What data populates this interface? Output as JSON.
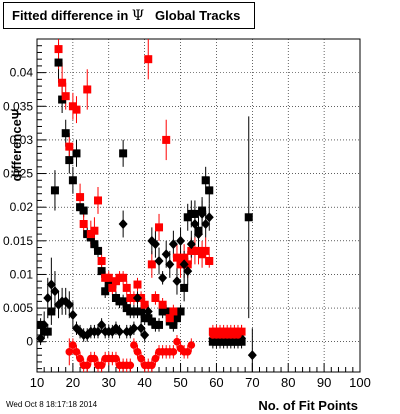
{
  "title": {
    "prefix": "Fitted difference in",
    "symbol": "Ψ",
    "suffix": "Global Tracks"
  },
  "timestamp": "Wed Oct  8 18:17:18 2014",
  "colors": {
    "black_series": "#000000",
    "red_series": "#ff0000",
    "axis": "#000000",
    "grid": "#000000"
  },
  "chart_data": {
    "type": "scatter",
    "xlabel": "No. of Fit Points",
    "ylabel": "differenceΨ",
    "xlim": [
      10,
      100
    ],
    "ylim": [
      -0.0045,
      0.045
    ],
    "x_ticks": [
      10,
      20,
      30,
      40,
      50,
      60,
      70,
      80,
      90,
      100
    ],
    "x_tick_labels": [
      "10",
      "20",
      "30",
      "40",
      "50",
      "60",
      "70",
      "80",
      "90",
      "100"
    ],
    "y_ticks": [
      0,
      0.005,
      0.01,
      0.015,
      0.02,
      0.025,
      0.03,
      0.035,
      0.04
    ],
    "y_tick_labels": [
      "0",
      "0.005",
      "0.01",
      "0.015",
      "0.02",
      "0.025",
      "0.03",
      "0.035",
      "0.04"
    ],
    "grid": true,
    "series": [
      {
        "marker": "square",
        "color": "#000000",
        "points": [
          [
            11,
            0.0025,
            0.001
          ],
          [
            12,
            0.0015,
            0.001
          ],
          [
            13,
            0.0015,
            0.001
          ],
          [
            14,
            0.0045,
            0.002
          ],
          [
            15,
            0.0225,
            0.003
          ],
          [
            16,
            0.0415,
            0.003
          ],
          [
            17,
            0.036,
            0.002
          ],
          [
            18,
            0.031,
            0.002
          ],
          [
            19,
            0.027,
            0.002
          ],
          [
            20,
            0.024,
            0.002
          ],
          [
            21,
            0.028,
            0.002
          ],
          [
            22,
            0.02,
            0.001
          ],
          [
            23,
            0.0195,
            0.001
          ],
          [
            24,
            0.016,
            0.001
          ],
          [
            25,
            0.0155,
            0.001
          ],
          [
            26,
            0.0145,
            0.001
          ],
          [
            27,
            0.0135,
            0.001
          ],
          [
            28,
            0.0105,
            0.001
          ],
          [
            29,
            0.0075,
            0.001
          ],
          [
            30,
            0.0085,
            0.001
          ],
          [
            31,
            0.0085,
            0.001
          ],
          [
            32,
            0.0065,
            0.001
          ],
          [
            33,
            0.006,
            0.001
          ],
          [
            34,
            0.006,
            0.001
          ],
          [
            35,
            0.005,
            0.001
          ],
          [
            36,
            0.0045,
            0.001
          ],
          [
            37,
            0.0045,
            0.001
          ],
          [
            38,
            0.0045,
            0.001
          ],
          [
            39,
            0.0045,
            0.001
          ],
          [
            40,
            0.0035,
            0.001
          ],
          [
            41,
            0.0035,
            0.001
          ],
          [
            42,
            0.003,
            0.001
          ],
          [
            43,
            0.0025,
            0.001
          ],
          [
            44,
            0.0025,
            0.001
          ],
          [
            45,
            0.0045,
            0.001
          ],
          [
            46,
            0.0045,
            0.001
          ],
          [
            47,
            0.003,
            0.001
          ],
          [
            48,
            0.0025,
            0.001
          ],
          [
            49,
            0.0035,
            0.001
          ],
          [
            50,
            0.0045,
            0.001
          ],
          [
            51,
            0.008,
            0.002
          ],
          [
            52,
            0.0185,
            0.002
          ],
          [
            53,
            0.019,
            0.002
          ],
          [
            54,
            0.019,
            0.002
          ],
          [
            55,
            0.0165,
            0.002
          ],
          [
            56,
            0.0195,
            0.002
          ],
          [
            57,
            0.024,
            0.002
          ],
          [
            58,
            0.0225,
            0.002
          ],
          [
            59,
            0.0,
            0.001
          ],
          [
            60,
            0.0,
            0.001
          ],
          [
            61,
            0.0,
            0.001
          ],
          [
            62,
            0.0,
            0.001
          ],
          [
            63,
            0.0,
            0.001
          ],
          [
            64,
            0.0,
            0.001
          ],
          [
            65,
            0.0,
            0.001
          ],
          [
            66,
            0.0,
            0.001
          ],
          [
            67,
            0.0,
            0.001
          ],
          [
            69,
            0.0185,
            0.015
          ],
          [
            34,
            0.028,
            0.002
          ]
        ]
      },
      {
        "marker": "square",
        "color": "#ff0000",
        "points": [
          [
            16,
            0.0435,
            0.003
          ],
          [
            17,
            0.0385,
            0.003
          ],
          [
            18,
            0.0365,
            0.002
          ],
          [
            19,
            0.029,
            0.002
          ],
          [
            20,
            0.035,
            0.002
          ],
          [
            21,
            0.0345,
            0.002
          ],
          [
            22,
            0.0215,
            0.002
          ],
          [
            23,
            0.0175,
            0.002
          ],
          [
            24,
            0.0375,
            0.003
          ],
          [
            25,
            0.016,
            0.002
          ],
          [
            26,
            0.0165,
            0.002
          ],
          [
            27,
            0.021,
            0.002
          ],
          [
            28,
            0.012,
            0.002
          ],
          [
            29,
            0.0095,
            0.001
          ],
          [
            30,
            0.0095,
            0.001
          ],
          [
            31,
            0.008,
            0.001
          ],
          [
            32,
            0.009,
            0.001
          ],
          [
            33,
            0.0095,
            0.001
          ],
          [
            34,
            0.0095,
            0.001
          ],
          [
            35,
            0.008,
            0.001
          ],
          [
            36,
            0.0065,
            0.001
          ],
          [
            37,
            0.0065,
            0.001
          ],
          [
            38,
            0.0085,
            0.001
          ],
          [
            39,
            0.0065,
            0.001
          ],
          [
            40,
            0.0055,
            0.001
          ],
          [
            41,
            0.042,
            0.003
          ],
          [
            42,
            0.0115,
            0.002
          ],
          [
            43,
            0.0065,
            0.001
          ],
          [
            44,
            0.017,
            0.002
          ],
          [
            45,
            0.0055,
            0.001
          ],
          [
            46,
            0.03,
            0.003
          ],
          [
            47,
            0.0035,
            0.001
          ],
          [
            48,
            0.0045,
            0.001
          ],
          [
            49,
            0.0125,
            0.002
          ],
          [
            50,
            0.0115,
            0.002
          ],
          [
            51,
            0.0125,
            0.002
          ],
          [
            52,
            0.0115,
            0.002
          ],
          [
            53,
            0.0135,
            0.002
          ],
          [
            54,
            0.0135,
            0.002
          ],
          [
            55,
            0.0135,
            0.002
          ],
          [
            56,
            0.013,
            0.002
          ],
          [
            57,
            0.0135,
            0.002
          ],
          [
            58,
            0.012,
            0.001
          ],
          [
            59,
            0.0015,
            0.001
          ],
          [
            60,
            0.0015,
            0.001
          ],
          [
            61,
            0.0015,
            0.001
          ],
          [
            62,
            0.0015,
            0.001
          ],
          [
            63,
            0.0015,
            0.001
          ],
          [
            64,
            0.0015,
            0.001
          ],
          [
            65,
            0.0015,
            0.001
          ],
          [
            66,
            0.0015,
            0.001
          ],
          [
            67,
            0.0015,
            0.001
          ]
        ]
      },
      {
        "marker": "diamond",
        "color": "#000000",
        "points": [
          [
            11,
            0.0005,
            0.001
          ],
          [
            12,
            0.0025,
            0.002
          ],
          [
            13,
            0.0065,
            0.003
          ],
          [
            14,
            0.0085,
            0.004
          ],
          [
            15,
            0.0075,
            0.003
          ],
          [
            16,
            0.0055,
            0.002
          ],
          [
            17,
            0.006,
            0.002
          ],
          [
            18,
            0.006,
            0.002
          ],
          [
            19,
            0.0055,
            0.002
          ],
          [
            20,
            0.004,
            0.002
          ],
          [
            21,
            0.002,
            0.001
          ],
          [
            22,
            0.0015,
            0.001
          ],
          [
            23,
            0.001,
            0.001
          ],
          [
            24,
            0.001,
            0.001
          ],
          [
            25,
            0.0015,
            0.001
          ],
          [
            26,
            0.0015,
            0.001
          ],
          [
            27,
            0.0015,
            0.001
          ],
          [
            28,
            0.0025,
            0.001
          ],
          [
            29,
            0.0015,
            0.001
          ],
          [
            30,
            0.0015,
            0.001
          ],
          [
            31,
            0.0015,
            0.001
          ],
          [
            32,
            0.002,
            0.001
          ],
          [
            33,
            0.0015,
            0.001
          ],
          [
            34,
            0.0175,
            0.002
          ],
          [
            35,
            0.0015,
            0.001
          ],
          [
            36,
            0.0015,
            0.001
          ],
          [
            37,
            0.002,
            0.001
          ],
          [
            38,
            0.0065,
            0.001
          ],
          [
            39,
            0.002,
            0.001
          ],
          [
            40,
            0.001,
            0.001
          ],
          [
            41,
            0.0045,
            0.001
          ],
          [
            42,
            0.015,
            0.002
          ],
          [
            43,
            0.0145,
            0.002
          ],
          [
            44,
            0.012,
            0.002
          ],
          [
            45,
            0.0095,
            0.001
          ],
          [
            46,
            0.013,
            0.002
          ],
          [
            47,
            0.0115,
            0.002
          ],
          [
            48,
            0.0145,
            0.002
          ],
          [
            49,
            0.009,
            0.002
          ],
          [
            50,
            0.015,
            0.002
          ],
          [
            51,
            0.0115,
            0.002
          ],
          [
            52,
            0.0105,
            0.002
          ],
          [
            53,
            0.0145,
            0.002
          ],
          [
            54,
            0.0175,
            0.002
          ],
          [
            55,
            0.016,
            0.002
          ],
          [
            56,
            0.019,
            0.002
          ],
          [
            57,
            0.0175,
            0.002
          ],
          [
            58,
            0.0185,
            0.002
          ],
          [
            59,
            0.0005,
            0.001
          ],
          [
            60,
            0.0005,
            0.001
          ],
          [
            61,
            0.0005,
            0.001
          ],
          [
            62,
            0.0005,
            0.001
          ],
          [
            63,
            0.0005,
            0.001
          ],
          [
            64,
            0.0005,
            0.001
          ],
          [
            65,
            0.0005,
            0.001
          ],
          [
            66,
            0.0005,
            0.001
          ],
          [
            67,
            0.0005,
            0.001
          ],
          [
            70,
            -0.002,
            0.004
          ]
        ]
      },
      {
        "marker": "circle",
        "color": "#ff0000",
        "points": [
          [
            19,
            -0.0015,
            0.002
          ],
          [
            20,
            -0.0005,
            0.001
          ],
          [
            21,
            -0.0015,
            0.001
          ],
          [
            22,
            -0.0025,
            0.001
          ],
          [
            23,
            -0.0035,
            0.001
          ],
          [
            24,
            -0.0035,
            0.001
          ],
          [
            25,
            -0.0025,
            0.001
          ],
          [
            26,
            -0.0025,
            0.001
          ],
          [
            27,
            -0.0035,
            0.001
          ],
          [
            28,
            -0.0035,
            0.001
          ],
          [
            29,
            -0.0025,
            0.001
          ],
          [
            30,
            -0.0025,
            0.001
          ],
          [
            31,
            -0.0025,
            0.001
          ],
          [
            32,
            -0.0025,
            0.001
          ],
          [
            33,
            -0.0035,
            0.001
          ],
          [
            34,
            -0.0035,
            0.001
          ],
          [
            35,
            -0.0035,
            0.001
          ],
          [
            36,
            -0.0035,
            0.001
          ],
          [
            37,
            -0.0005,
            0.001
          ],
          [
            38,
            -0.0015,
            0.001
          ],
          [
            39,
            -0.0025,
            0.001
          ],
          [
            40,
            -0.0035,
            0.001
          ],
          [
            41,
            -0.0035,
            0.001
          ],
          [
            42,
            -0.0035,
            0.001
          ],
          [
            43,
            -0.0025,
            0.001
          ],
          [
            44,
            -0.0015,
            0.001
          ],
          [
            45,
            -0.0015,
            0.001
          ],
          [
            46,
            -0.0015,
            0.001
          ],
          [
            47,
            -0.0015,
            0.001
          ],
          [
            48,
            -0.0015,
            0.001
          ],
          [
            49,
            0.0,
            0.001
          ],
          [
            50,
            -0.001,
            0.001
          ],
          [
            51,
            -0.0015,
            0.001
          ],
          [
            52,
            -0.0015,
            0.001
          ],
          [
            53,
            -0.0005,
            0.001
          ],
          [
            59,
            0.001,
            0.001
          ],
          [
            60,
            0.001,
            0.001
          ],
          [
            61,
            0.001,
            0.001
          ],
          [
            62,
            0.001,
            0.001
          ],
          [
            63,
            0.001,
            0.001
          ],
          [
            64,
            0.001,
            0.001
          ],
          [
            65,
            0.001,
            0.001
          ],
          [
            66,
            0.001,
            0.001
          ],
          [
            67,
            0.0015,
            0.001
          ]
        ]
      }
    ]
  }
}
